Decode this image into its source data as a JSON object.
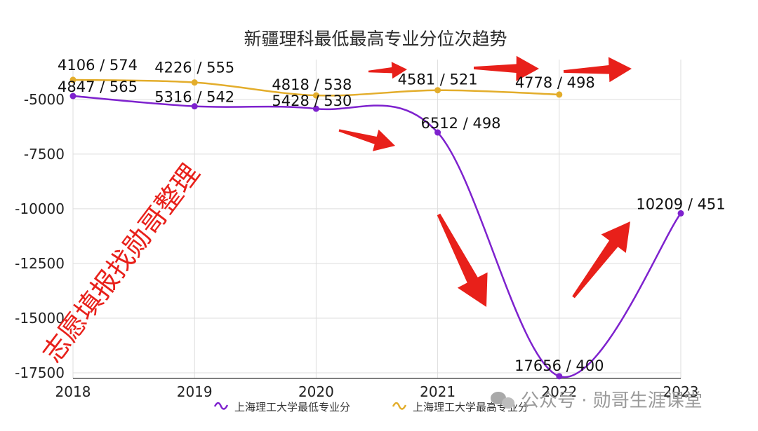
{
  "chart_data": {
    "type": "line",
    "title": "新疆理科最低最高专业分位次趋势",
    "categories": [
      "2018",
      "2019",
      "2020",
      "2021",
      "2022",
      "2023"
    ],
    "ylim": [
      -17500,
      -3500
    ],
    "yticks": [
      -5000,
      -7500,
      -10000,
      -12500,
      -15000,
      -17500
    ],
    "ytick_labels": [
      "-5000",
      "-7500",
      "-10000",
      "-12500",
      "-15000",
      "-17500"
    ],
    "grid": true,
    "legend_position": "bottom",
    "series": [
      {
        "name": "上海理工大学最低专业分",
        "color": "#7e22ce",
        "values": [
          -4847,
          -5316,
          -5428,
          -6512,
          -17656,
          -10209
        ],
        "labels": [
          "4847 / 565",
          "5316 / 542",
          "5428 / 530",
          "6512 / 498",
          "17656 / 400",
          "10209 / 451"
        ]
      },
      {
        "name": "上海理工大学最高专业分",
        "color": "#e3ad2b",
        "values": [
          -4106,
          -4226,
          -4818,
          -4581,
          -4778,
          null
        ],
        "labels": [
          "4106 / 574",
          "4226 / 555",
          "4818 / 538",
          "4581 / 521",
          "4778 / 498",
          null
        ]
      }
    ]
  },
  "watermark_text": "志愿填报找勋哥整理",
  "brand_text": "公众号 · 勋哥生涯课堂",
  "colors": {
    "arrows": "#e8201a",
    "grid": "#dddddd",
    "axis": "#555555"
  }
}
